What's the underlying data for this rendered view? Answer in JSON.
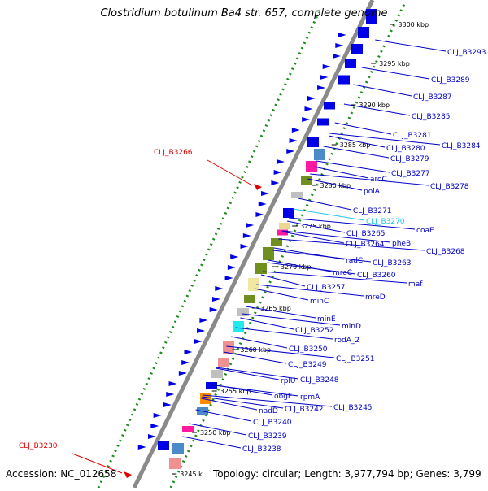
{
  "title": "Clostridium botulinum Ba4 str. 657, complete genome",
  "footer": {
    "accession": "Accession: NC_012658",
    "summary": "Topology: circular; Length: 3,977,794 bp; Genes: 3,799"
  },
  "colors": {
    "backbone": "#8a8a8a",
    "gene_default": "#0000e6",
    "label_default": "#0000c8",
    "label_highlight": "#e00000",
    "label_pseudo": "#22c4e8",
    "gc_dots": "#1a8a1a"
  },
  "ticks": [
    {
      "label": "3300 kbp"
    },
    {
      "label": "3295 kbp"
    },
    {
      "label": "3290 kbp"
    },
    {
      "label": "3285 kbp"
    },
    {
      "label": "3280 kbp"
    },
    {
      "label": "3275 kbp"
    },
    {
      "label": "3270 kbp"
    },
    {
      "label": "3265 kbp"
    },
    {
      "label": "3260 kbp"
    },
    {
      "label": "3255 kbp"
    },
    {
      "label": "3250 kbp"
    },
    {
      "label": "3245 k"
    }
  ],
  "right_labels": [
    {
      "text": "CLJ_B3293"
    },
    {
      "text": "CLJ_B3289"
    },
    {
      "text": "CLJ_B3287"
    },
    {
      "text": "CLJ_B3285"
    },
    {
      "text": "CLJ_B3281"
    },
    {
      "text": "CLJ_B3284"
    },
    {
      "text": "CLJ_B3280"
    },
    {
      "text": "CLJ_B3279"
    },
    {
      "text": "CLJ_B3277"
    },
    {
      "text": "aroC"
    },
    {
      "text": "CLJ_B3278"
    },
    {
      "text": "polA"
    },
    {
      "text": "CLJ_B3271"
    },
    {
      "text": "CLJ_B3270"
    },
    {
      "text": "coaE"
    },
    {
      "text": "CLJ_B3265"
    },
    {
      "text": "CLJ_B3264"
    },
    {
      "text": "pheB"
    },
    {
      "text": "CLJ_B3268"
    },
    {
      "text": "radC"
    },
    {
      "text": "CLJ_B3263"
    },
    {
      "text": "mreC"
    },
    {
      "text": "CLJ_B3260"
    },
    {
      "text": "maf"
    },
    {
      "text": "CLJ_B3257"
    },
    {
      "text": "mreD"
    },
    {
      "text": "minC"
    },
    {
      "text": "minE"
    },
    {
      "text": "minD"
    },
    {
      "text": "CLJ_B3252"
    },
    {
      "text": "rodA_2"
    },
    {
      "text": "CLJ_B3250"
    },
    {
      "text": "CLJ_B3251"
    },
    {
      "text": "CLJ_B3249"
    },
    {
      "text": "rplU"
    },
    {
      "text": "CLJ_B3248"
    },
    {
      "text": "obgE"
    },
    {
      "text": "rpmA"
    },
    {
      "text": "CLJ_B3242"
    },
    {
      "text": "CLJ_B3245"
    },
    {
      "text": "nadD"
    },
    {
      "text": "CLJ_B3240"
    },
    {
      "text": "CLJ_B3239"
    },
    {
      "text": "CLJ_B3238"
    }
  ],
  "left_labels": [
    {
      "text": "CLJ_B3266"
    },
    {
      "text": "CLJ_B3230"
    }
  ]
}
